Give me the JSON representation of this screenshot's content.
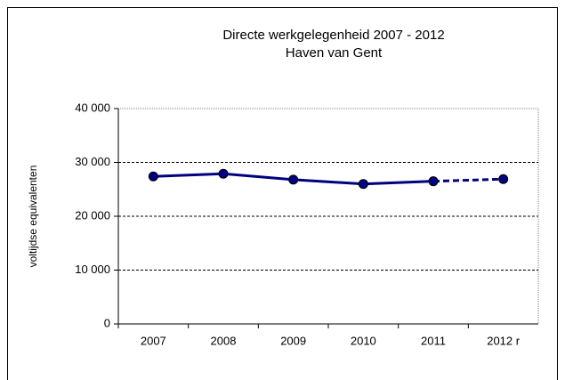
{
  "chart_data": {
    "type": "line",
    "title": [
      "Directe werkgelegenheid  2007  - 2012",
      "Haven van Gent"
    ],
    "y_label": "voltijdse equivalenten",
    "categories": [
      "2007",
      "2008",
      "2009",
      "2010",
      "2011",
      "2012 r"
    ],
    "series": [
      {
        "color": "#000080",
        "values": [
          27400,
          27900,
          26800,
          26000,
          26500,
          26900
        ]
      }
    ],
    "dashed_from_index": 4,
    "ylim": [
      0,
      40000
    ],
    "yticks": [
      0,
      {
        "value": 10000,
        "label": "10 000"
      },
      {
        "value": 20000,
        "label": "20 000"
      },
      {
        "value": 30000,
        "label": "30 000"
      },
      {
        "value": 40000,
        "label": "40 000"
      }
    ],
    "grid": true
  }
}
